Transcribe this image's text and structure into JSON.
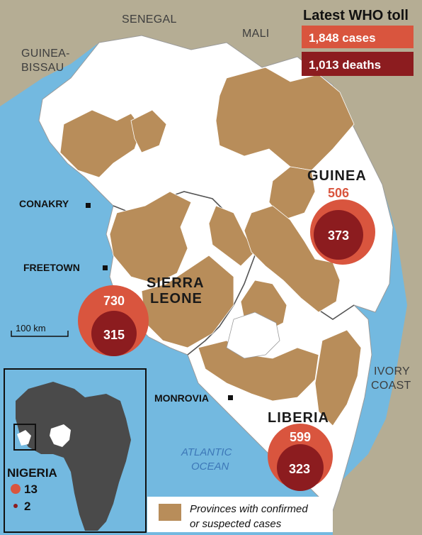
{
  "colors": {
    "sea": "#73b9e0",
    "land_other": "#b5ad94",
    "land_focus": "#ffffff",
    "affected": "#b88d5a",
    "cases": "#d9553e",
    "deaths": "#8c1c1f",
    "border": "#9a9a9a"
  },
  "toll": {
    "title": "Latest WHO toll",
    "cases_label": "1,848 cases",
    "deaths_label": "1,013 deaths"
  },
  "neighbors": {
    "senegal": "SENEGAL",
    "mali": "MALI",
    "guinea_bissau_1": "GUINEA-",
    "guinea_bissau_2": "BISSAU",
    "ivory_coast_1": "IVORY",
    "ivory_coast_2": "COAST"
  },
  "countries": [
    {
      "id": "guinea",
      "name_lines": [
        "GUINEA"
      ],
      "cases": "506",
      "deaths": "373"
    },
    {
      "id": "sierra-leone",
      "name_lines": [
        "SIERRA",
        "LEONE"
      ],
      "cases": "730",
      "deaths": "315"
    },
    {
      "id": "liberia",
      "name_lines": [
        "LIBERIA"
      ],
      "cases": "599",
      "deaths": "323"
    }
  ],
  "cities": {
    "conakry": "CONAKRY",
    "freetown": "FREETOWN",
    "monrovia": "MONROVIA"
  },
  "ocean": {
    "line1": "ATLANTIC",
    "line2": "OCEAN"
  },
  "scale": {
    "label": "100 km",
    "km": 100
  },
  "inset": {
    "country": "NIGERIA",
    "cases": "13",
    "deaths": "2",
    "icons": {
      "case": "case-dot-icon",
      "death": "death-dot-icon"
    }
  },
  "legend": {
    "line1": "Provinces with confirmed",
    "line2": "or suspected cases"
  }
}
